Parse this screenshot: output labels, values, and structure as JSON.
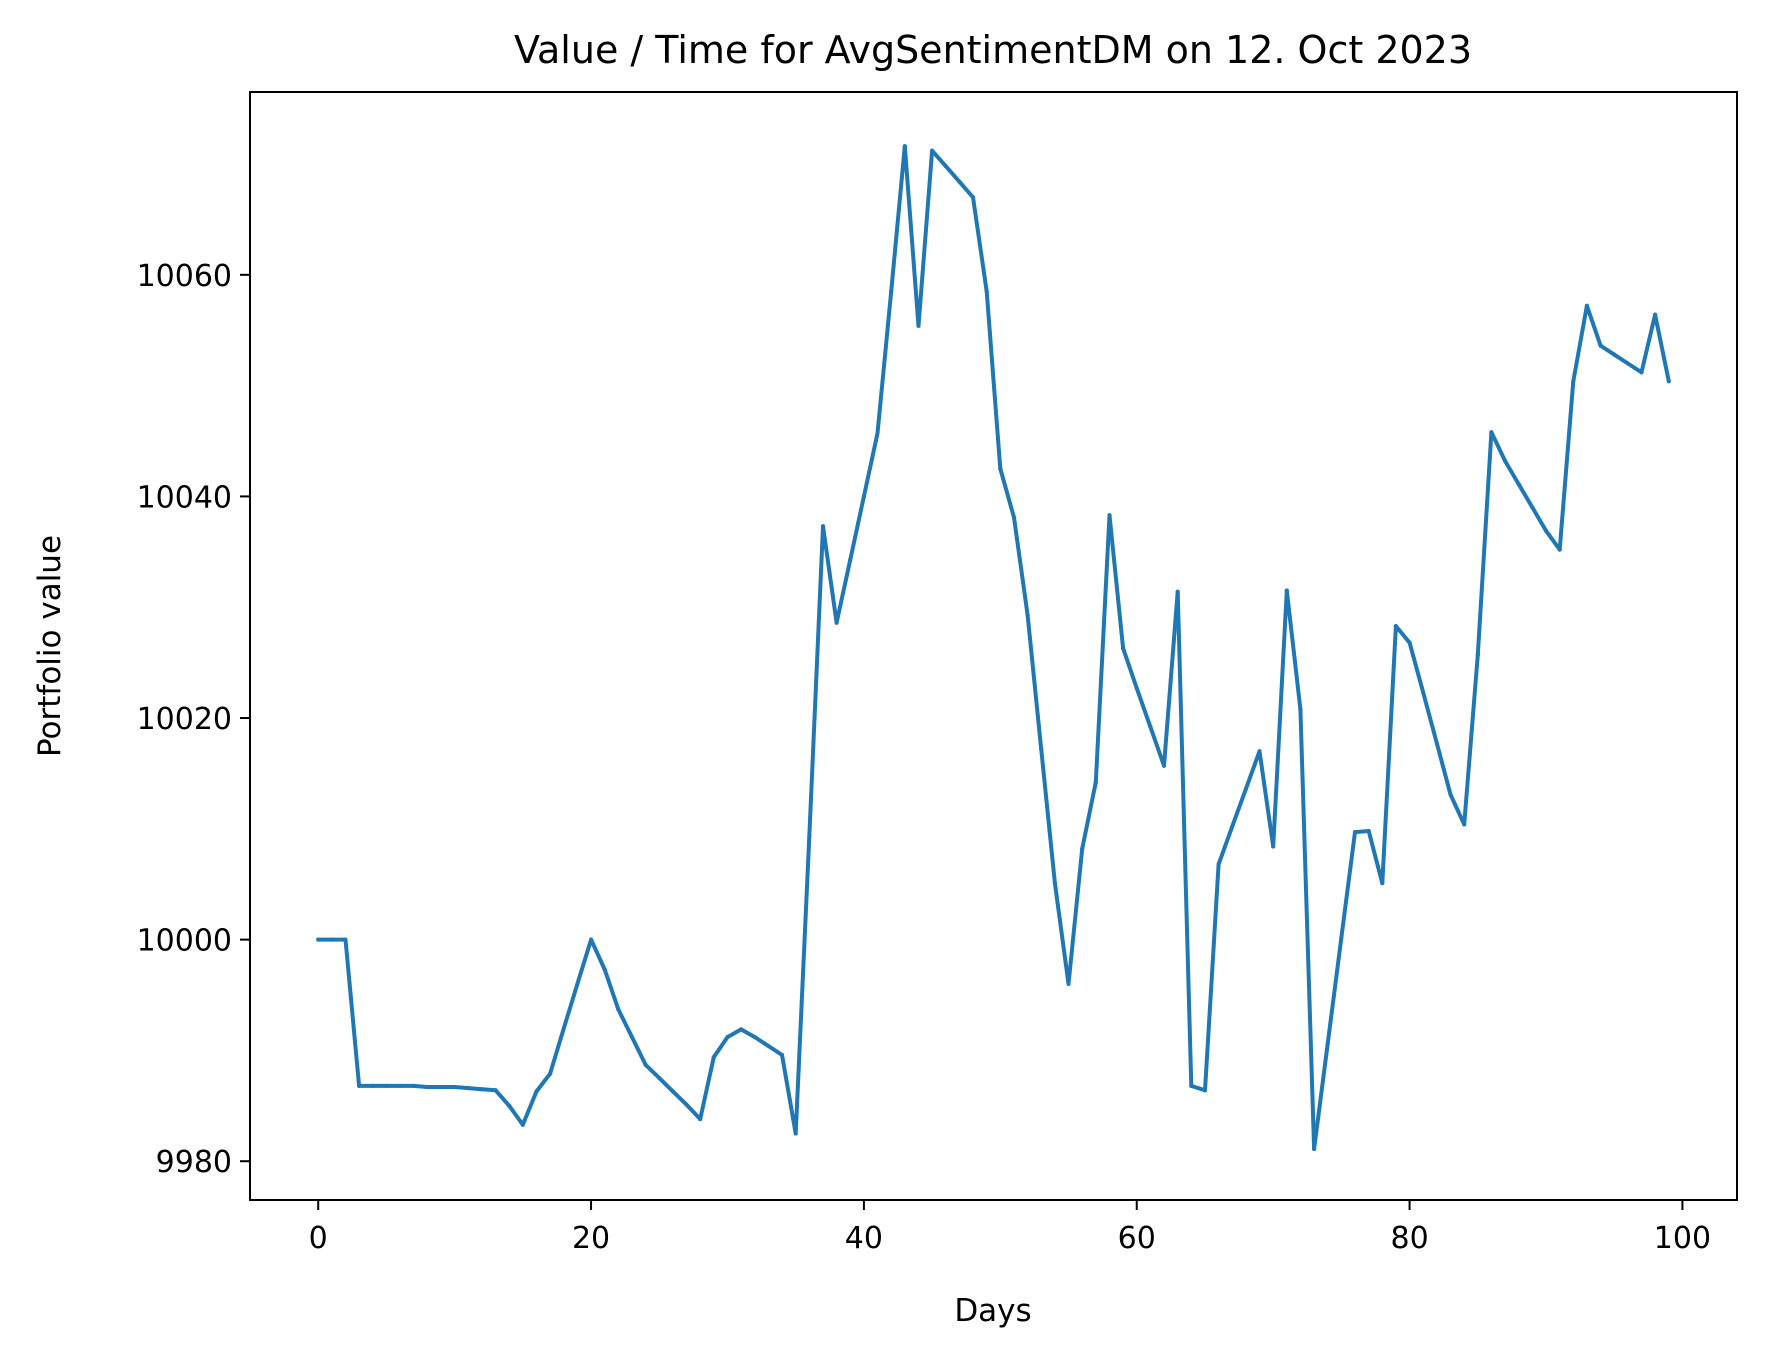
{
  "chart_data": {
    "type": "line",
    "title": "Value / Time for AvgSentimentDM on 12. Oct 2023",
    "xlabel": "Days",
    "ylabel": "Portfolio value",
    "xlim": [
      -5,
      104
    ],
    "ylim": [
      9976.5,
      10076.5
    ],
    "xticks": [
      0,
      20,
      40,
      60,
      80,
      100
    ],
    "yticks": [
      9980,
      10000,
      10020,
      10040,
      10060
    ],
    "grid": false,
    "legend": "none",
    "series": [
      {
        "color": "#1f77b4",
        "x": [
          0,
          1,
          2,
          3,
          4,
          5,
          6,
          7,
          8,
          9,
          10,
          11,
          12,
          13,
          14,
          15,
          16,
          17,
          18,
          19,
          20,
          21,
          22,
          23,
          24,
          25,
          26,
          27,
          28,
          29,
          30,
          31,
          32,
          33,
          34,
          35,
          36,
          37,
          38,
          39,
          40,
          41,
          42,
          43,
          44,
          45,
          46,
          47,
          48,
          49,
          50,
          51,
          52,
          53,
          54,
          55,
          56,
          57,
          58,
          59,
          60,
          61,
          62,
          63,
          64,
          65,
          66,
          67,
          68,
          69,
          70,
          71,
          72,
          73,
          74,
          75,
          76,
          77,
          78,
          79,
          80,
          81,
          82,
          83,
          84,
          85,
          86,
          87,
          88,
          89,
          90,
          91,
          92,
          93,
          94,
          95,
          96,
          97,
          98,
          99
        ],
        "y": [
          10000,
          10000,
          10000,
          9986.8,
          9986.8,
          9986.8,
          9986.8,
          9986.8,
          9986.7,
          9986.7,
          9986.7,
          9986.6,
          9986.5,
          9986.4,
          9985,
          9983.3,
          9986.3,
          9987.9,
          9992,
          9996,
          10000,
          9997.3,
          9993.7,
          9991.2,
          9988.7,
          9987.5,
          9986.3,
          9985.1,
          9983.8,
          9989.4,
          9991.2,
          9991.9,
          9991.2,
          9990.4,
          9989.6,
          9982.5,
          10009.3,
          10037.3,
          10028.6,
          10034.3,
          10040,
          10045.7,
          10058.5,
          10071.6,
          10055.4,
          10071.2,
          10069.8,
          10068.4,
          10067,
          10058.5,
          10042.5,
          10038.1,
          10029.3,
          10017.2,
          10005.1,
          9996,
          10008.2,
          10014.2,
          10038.3,
          10026.3,
          10022.7,
          10019.2,
          10015.7,
          10031.4,
          9986.8,
          9986.4,
          10006.8,
          10010.2,
          10013.6,
          10017,
          10008.4,
          10031.5,
          10020.8,
          9981.1,
          9990.6,
          10000.2,
          10009.7,
          10009.8,
          10005.1,
          10028.3,
          10026.8,
          10022.3,
          10017.7,
          10013.1,
          10010.4,
          10025.7,
          10045.8,
          10043.2,
          10041.1,
          10039,
          10036.9,
          10035.2,
          10050.4,
          10057.2,
          10053.6,
          10052.8,
          10052,
          10051.2,
          10056.4,
          10050.4
        ]
      }
    ]
  }
}
